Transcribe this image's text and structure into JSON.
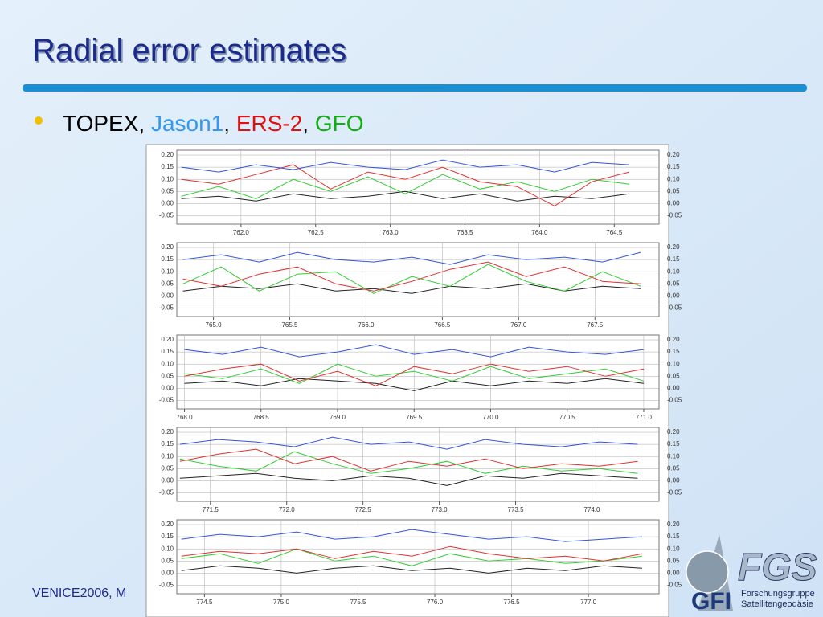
{
  "title": "Radial error estimates",
  "bullet": [
    {
      "text": "TOPEX",
      "color": "#000000"
    },
    {
      "text": ", ",
      "color": "#000000"
    },
    {
      "text": "Jason1",
      "color": "#3399ee"
    },
    {
      "text": ", ",
      "color": "#000000"
    },
    {
      "text": "ERS-2",
      "color": "#e01010"
    },
    {
      "text": ", ",
      "color": "#000000"
    },
    {
      "text": "GFO",
      "color": "#10b010"
    }
  ],
  "footer": "VENICE2006, M",
  "logo": {
    "left": "GFI",
    "right": "FGS",
    "caption_1": "Forschungsgruppe",
    "caption_2": "Satellitengeodäsie"
  },
  "chart_data": [
    {
      "type": "line",
      "grid": true,
      "xlim": [
        761.57,
        764.8
      ],
      "ylim": [
        -0.085,
        0.22
      ],
      "xticks": [
        {
          "value": 762,
          "label": "762.0"
        },
        762.5,
        {
          "value": 763,
          "label": "763.0"
        },
        763.5,
        {
          "value": 764,
          "label": "764.0"
        },
        764.5
      ],
      "yticks": [
        {
          "value": 0.2,
          "label": "0.20"
        },
        {
          "value": 0.15,
          "label": "0.15"
        },
        {
          "value": 0.1,
          "label": "0.10"
        },
        {
          "value": 0.05,
          "label": "0.05"
        },
        {
          "value": 0,
          "label": "0.00"
        },
        {
          "value": -0.05,
          "label": "-0.05"
        }
      ],
      "x": [
        761.6,
        761.85,
        762.1,
        762.35,
        762.6,
        762.85,
        763.1,
        763.35,
        763.6,
        763.85,
        764.1,
        764.35,
        764.6
      ],
      "series": [
        {
          "color": "#222222",
          "values": [
            0.02,
            0.03,
            0.01,
            0.04,
            0.02,
            0.03,
            0.05,
            0.02,
            0.04,
            0.01,
            0.03,
            0.02,
            0.04
          ]
        },
        {
          "color": "#33cc33",
          "values": [
            0.03,
            0.07,
            0.02,
            0.1,
            0.05,
            0.11,
            0.04,
            0.12,
            0.06,
            0.09,
            0.05,
            0.1,
            0.08
          ]
        },
        {
          "color": "#e03030",
          "values": [
            0.1,
            0.08,
            0.12,
            0.16,
            0.06,
            0.13,
            0.1,
            0.15,
            0.09,
            0.07,
            -0.01,
            0.09,
            0.13
          ]
        },
        {
          "color": "#3355dd",
          "values": [
            0.15,
            0.13,
            0.16,
            0.14,
            0.17,
            0.15,
            0.14,
            0.18,
            0.15,
            0.16,
            0.13,
            0.17,
            0.16
          ]
        }
      ]
    },
    {
      "type": "line",
      "grid": true,
      "xlim": [
        764.76,
        767.92
      ],
      "ylim": [
        -0.085,
        0.22
      ],
      "xticks": [
        {
          "value": 765,
          "label": "765.0"
        },
        765.5,
        {
          "value": 766,
          "label": "766.0"
        },
        766.5,
        {
          "value": 767,
          "label": "767.0"
        },
        767.5
      ],
      "yticks": [
        {
          "value": 0.2,
          "label": "0.20"
        },
        {
          "value": 0.15,
          "label": "0.15"
        },
        {
          "value": 0.1,
          "label": "0.10"
        },
        {
          "value": 0.05,
          "label": "0.05"
        },
        {
          "value": 0,
          "label": "0.00"
        },
        {
          "value": -0.05,
          "label": "-0.05"
        }
      ],
      "x": [
        764.8,
        765.05,
        765.3,
        765.55,
        765.8,
        766.05,
        766.3,
        766.55,
        766.8,
        767.05,
        767.3,
        767.55,
        767.8
      ],
      "series": [
        {
          "color": "#222222",
          "values": [
            0.02,
            0.04,
            0.03,
            0.05,
            0.02,
            0.03,
            0.01,
            0.04,
            0.03,
            0.05,
            0.02,
            0.04,
            0.03
          ]
        },
        {
          "color": "#33cc33",
          "values": [
            0.05,
            0.12,
            0.02,
            0.09,
            0.1,
            0.01,
            0.08,
            0.04,
            0.13,
            0.06,
            0.02,
            0.1,
            0.04
          ]
        },
        {
          "color": "#e03030",
          "values": [
            0.07,
            0.04,
            0.09,
            0.12,
            0.05,
            0.02,
            0.06,
            0.11,
            0.14,
            0.08,
            0.12,
            0.06,
            0.05
          ]
        },
        {
          "color": "#3355dd",
          "values": [
            0.15,
            0.17,
            0.14,
            0.18,
            0.15,
            0.14,
            0.16,
            0.13,
            0.17,
            0.15,
            0.16,
            0.14,
            0.18
          ]
        }
      ]
    },
    {
      "type": "line",
      "grid": true,
      "xlim": [
        767.95,
        771.1
      ],
      "ylim": [
        -0.085,
        0.22
      ],
      "xticks": [
        {
          "value": 768,
          "label": "768.0"
        },
        768.5,
        {
          "value": 769,
          "label": "769.0"
        },
        769.5,
        {
          "value": 770,
          "label": "770.0"
        },
        770.5,
        {
          "value": 771,
          "label": "771.0"
        }
      ],
      "yticks": [
        {
          "value": 0.2,
          "label": "0.20"
        },
        {
          "value": 0.15,
          "label": "0.15"
        },
        {
          "value": 0.1,
          "label": "0.10"
        },
        {
          "value": 0.05,
          "label": "0.05"
        },
        {
          "value": 0,
          "label": "0.00"
        },
        {
          "value": -0.05,
          "label": "-0.05"
        }
      ],
      "x": [
        768.0,
        768.25,
        768.5,
        768.75,
        769.0,
        769.25,
        769.5,
        769.75,
        770.0,
        770.25,
        770.5,
        770.75,
        771.0
      ],
      "series": [
        {
          "color": "#222222",
          "values": [
            0.02,
            0.03,
            0.01,
            0.04,
            0.03,
            0.02,
            -0.01,
            0.03,
            0.01,
            0.03,
            0.02,
            0.04,
            0.02
          ]
        },
        {
          "color": "#33cc33",
          "values": [
            0.06,
            0.04,
            0.08,
            0.02,
            0.1,
            0.05,
            0.07,
            0.03,
            0.09,
            0.04,
            0.06,
            0.08,
            0.03
          ]
        },
        {
          "color": "#e03030",
          "values": [
            0.05,
            0.08,
            0.1,
            0.03,
            0.07,
            0.01,
            0.09,
            0.06,
            0.1,
            0.07,
            0.09,
            0.05,
            0.08
          ]
        },
        {
          "color": "#3355dd",
          "values": [
            0.16,
            0.14,
            0.17,
            0.13,
            0.15,
            0.18,
            0.14,
            0.16,
            0.13,
            0.17,
            0.15,
            0.14,
            0.16
          ]
        }
      ]
    },
    {
      "type": "line",
      "grid": true,
      "xlim": [
        771.28,
        774.44
      ],
      "ylim": [
        -0.085,
        0.22
      ],
      "xticks": [
        771.5,
        {
          "value": 772,
          "label": "772.0"
        },
        772.5,
        {
          "value": 773,
          "label": "773.0"
        },
        773.5,
        {
          "value": 774,
          "label": "774.0"
        }
      ],
      "yticks": [
        {
          "value": 0.2,
          "label": "0.20"
        },
        {
          "value": 0.15,
          "label": "0.15"
        },
        {
          "value": 0.1,
          "label": "0.10"
        },
        {
          "value": 0.05,
          "label": "0.05"
        },
        {
          "value": 0,
          "label": "0.00"
        },
        {
          "value": -0.05,
          "label": "-0.05"
        }
      ],
      "x": [
        771.3,
        771.55,
        771.8,
        772.05,
        772.3,
        772.55,
        772.8,
        773.05,
        773.3,
        773.55,
        773.8,
        774.05,
        774.3
      ],
      "series": [
        {
          "color": "#222222",
          "values": [
            0.01,
            0.02,
            0.03,
            0.01,
            0.0,
            0.02,
            0.01,
            -0.02,
            0.02,
            0.01,
            0.03,
            0.02,
            0.01
          ]
        },
        {
          "color": "#33cc33",
          "values": [
            0.09,
            0.06,
            0.04,
            0.12,
            0.07,
            0.03,
            0.05,
            0.08,
            0.03,
            0.06,
            0.04,
            0.05,
            0.03
          ]
        },
        {
          "color": "#e03030",
          "values": [
            0.08,
            0.11,
            0.13,
            0.07,
            0.1,
            0.04,
            0.08,
            0.06,
            0.09,
            0.05,
            0.07,
            0.06,
            0.08
          ]
        },
        {
          "color": "#3355dd",
          "values": [
            0.15,
            0.17,
            0.16,
            0.14,
            0.18,
            0.15,
            0.16,
            0.13,
            0.17,
            0.15,
            0.14,
            0.16,
            0.15
          ]
        }
      ]
    },
    {
      "type": "line",
      "grid": true,
      "xlim": [
        774.32,
        777.46
      ],
      "ylim": [
        -0.085,
        0.22
      ],
      "xticks": [
        774.5,
        {
          "value": 775,
          "label": "775.0"
        },
        775.5,
        {
          "value": 776,
          "label": "776.0"
        },
        776.5,
        {
          "value": 777,
          "label": "777.0"
        }
      ],
      "yticks": [
        {
          "value": 0.2,
          "label": "0.20"
        },
        {
          "value": 0.15,
          "label": "0.15"
        },
        {
          "value": 0.1,
          "label": "0.10"
        },
        {
          "value": 0.05,
          "label": "0.05"
        },
        {
          "value": 0,
          "label": "0.00"
        },
        {
          "value": -0.05,
          "label": "-0.05"
        }
      ],
      "x": [
        774.35,
        774.6,
        774.85,
        775.1,
        775.35,
        775.6,
        775.85,
        776.1,
        776.35,
        776.6,
        776.85,
        777.1,
        777.35
      ],
      "series": [
        {
          "color": "#222222",
          "values": [
            0.01,
            0.03,
            0.02,
            0.0,
            0.02,
            0.03,
            0.01,
            0.02,
            0.0,
            0.02,
            0.01,
            0.03,
            0.02
          ]
        },
        {
          "color": "#33cc33",
          "values": [
            0.06,
            0.08,
            0.04,
            0.1,
            0.05,
            0.07,
            0.03,
            0.08,
            0.05,
            0.06,
            0.04,
            0.05,
            0.07
          ]
        },
        {
          "color": "#e03030",
          "values": [
            0.07,
            0.09,
            0.08,
            0.1,
            0.06,
            0.09,
            0.07,
            0.11,
            0.08,
            0.06,
            0.07,
            0.05,
            0.08
          ]
        },
        {
          "color": "#3355dd",
          "values": [
            0.14,
            0.16,
            0.15,
            0.17,
            0.14,
            0.15,
            0.18,
            0.16,
            0.14,
            0.15,
            0.13,
            0.14,
            0.15
          ]
        }
      ]
    }
  ]
}
